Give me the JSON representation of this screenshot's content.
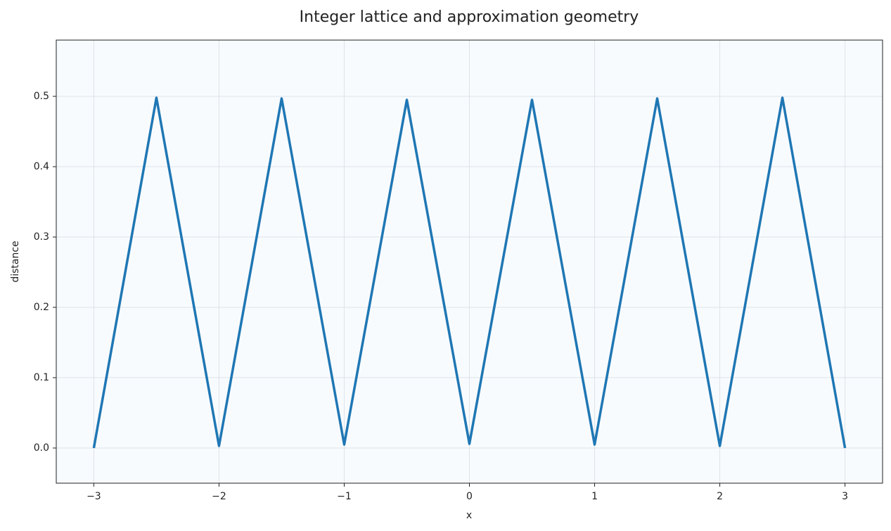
{
  "chart_data": {
    "type": "line",
    "title": "Integer lattice and approximation geometry",
    "x_label": "x",
    "y_label": "distance",
    "x": [
      -3,
      -2.5,
      -2,
      -1.5,
      -1,
      -0.5,
      0,
      0.5,
      1,
      1.5,
      2,
      2.5,
      3
    ],
    "series": [
      {
        "name": "distance",
        "color": "#1f77b4",
        "values": [
          0,
          0.498,
          0.003,
          0.497,
          0.005,
          0.495,
          0.006,
          0.495,
          0.005,
          0.497,
          0.003,
          0.498,
          0
        ]
      }
    ],
    "xlim": [
      -3.3,
      3.3
    ],
    "xticks": [
      {
        "value": -3,
        "label": "−3"
      },
      {
        "value": -2,
        "label": "−2"
      },
      {
        "value": -1,
        "label": "−1"
      },
      0,
      1,
      2,
      3
    ],
    "ylim": [
      -0.05,
      0.58
    ],
    "yticks": [
      {
        "value": 0,
        "label": "0.0"
      },
      0.1,
      0.2,
      0.3,
      0.4,
      0.5
    ],
    "grid": true,
    "background": "#f8fbfe"
  }
}
